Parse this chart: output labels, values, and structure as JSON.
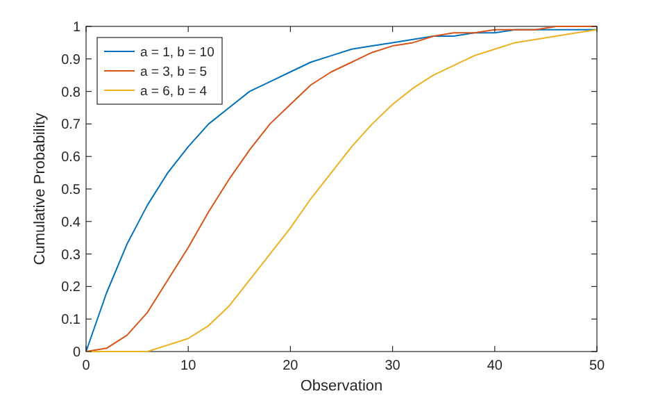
{
  "chart_data": {
    "type": "line",
    "xlabel": "Observation",
    "ylabel": "Cumulative Probability",
    "x": [
      0,
      2,
      4,
      6,
      8,
      10,
      12,
      14,
      16,
      18,
      20,
      22,
      24,
      26,
      28,
      30,
      32,
      34,
      36,
      38,
      40,
      42,
      44,
      46,
      48,
      50
    ],
    "series": [
      {
        "name": "a = 1, b = 10",
        "color": "#0072bd",
        "values": [
          0,
          0.18,
          0.33,
          0.45,
          0.55,
          0.63,
          0.7,
          0.75,
          0.8,
          0.83,
          0.86,
          0.89,
          0.91,
          0.93,
          0.94,
          0.95,
          0.96,
          0.97,
          0.97,
          0.98,
          0.98,
          0.99,
          0.99,
          0.99,
          0.99,
          0.99
        ]
      },
      {
        "name": "a = 3, b = 5",
        "color": "#d95319",
        "values": [
          0,
          0.01,
          0.05,
          0.12,
          0.22,
          0.32,
          0.43,
          0.53,
          0.62,
          0.7,
          0.76,
          0.82,
          0.86,
          0.89,
          0.92,
          0.94,
          0.95,
          0.97,
          0.98,
          0.98,
          0.99,
          0.99,
          0.99,
          1,
          1,
          1
        ]
      },
      {
        "name": "a = 6, b = 4",
        "color": "#edb120",
        "values": [
          0,
          0,
          0,
          0,
          0.02,
          0.04,
          0.08,
          0.14,
          0.22,
          0.3,
          0.38,
          0.47,
          0.55,
          0.63,
          0.7,
          0.76,
          0.81,
          0.85,
          0.88,
          0.91,
          0.93,
          0.95,
          0.96,
          0.97,
          0.98,
          0.99
        ]
      }
    ],
    "xlim": [
      0,
      50
    ],
    "xticks": [
      0,
      10,
      20,
      30,
      40,
      50
    ],
    "ylim": [
      0,
      1
    ],
    "yticks": [
      0,
      0.1,
      0.2,
      0.3,
      0.4,
      0.5,
      0.6,
      0.7,
      0.8,
      0.9,
      1
    ],
    "legend": "top left",
    "marker": "none",
    "line_style": "solid",
    "grid": false
  }
}
